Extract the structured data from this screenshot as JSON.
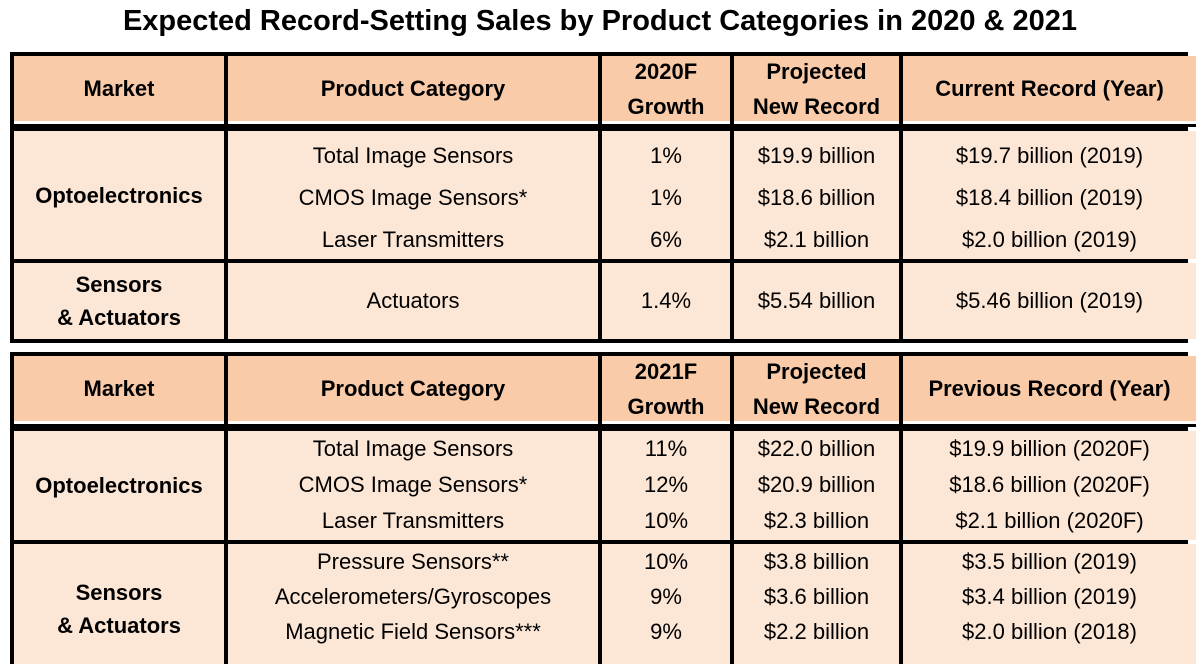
{
  "title": "Expected Record-Setting Sales by Product Categories in 2020 & 2021",
  "table_2020": {
    "headers": [
      "Market",
      "Product Category",
      "2020F Growth",
      "Projected New Record",
      "Current Record (Year)"
    ],
    "header_lines": {
      "growth": [
        "2020F",
        "Growth"
      ],
      "projected": [
        "Projected",
        "New Record"
      ]
    },
    "groups": [
      {
        "market": "Optoelectronics",
        "rows": [
          {
            "category": "Total Image Sensors",
            "growth": "1%",
            "projected": "$19.9 billion",
            "record": "$19.7 billion (2019)"
          },
          {
            "category": "CMOS Image Sensors*",
            "growth": "1%",
            "projected": "$18.6 billion",
            "record": "$18.4 billion (2019)"
          },
          {
            "category": "Laser Transmitters",
            "growth": "6%",
            "projected": "$2.1 billion",
            "record": "$2.0 billion (2019)"
          }
        ]
      },
      {
        "market_lines": [
          "Sensors",
          "& Actuators"
        ],
        "rows": [
          {
            "category": "Actuators",
            "growth": "1.4%",
            "projected": "$5.54 billion",
            "record": "$5.46 billion (2019)"
          }
        ]
      }
    ]
  },
  "table_2021": {
    "headers": [
      "Market",
      "Product Category",
      "2021F Growth",
      "Projected New Record",
      "Previous Record (Year)"
    ],
    "header_lines": {
      "growth": [
        "2021F",
        "Growth"
      ],
      "projected": [
        "Projected",
        "New Record"
      ]
    },
    "groups": [
      {
        "market": "Optoelectronics",
        "rows": [
          {
            "category": "Total Image Sensors",
            "growth": "11%",
            "projected": "$22.0 billion",
            "record": "$19.9 billion (2020F)"
          },
          {
            "category": "CMOS Image Sensors*",
            "growth": "12%",
            "projected": "$20.9 billion",
            "record": "$18.6 billion (2020F)"
          },
          {
            "category": "Laser Transmitters",
            "growth": "10%",
            "projected": "$2.3 billion",
            "record": "$2.1 billion (2020F)"
          }
        ]
      },
      {
        "market_lines": [
          "Sensors",
          "& Actuators"
        ],
        "rows": [
          {
            "category": "Pressure Sensors**",
            "growth": "10%",
            "projected": "$3.8 billion",
            "record": "$3.5 billion (2019)"
          },
          {
            "category": "Accelerometers/Gyroscopes",
            "growth": "9%",
            "projected": "$3.6 billion",
            "record": "$3.4 billion (2019)"
          },
          {
            "category": "Magnetic Field Sensors***",
            "growth": "9%",
            "projected": "$2.2 billion",
            "record": "$2.0 billion (2018)"
          }
        ]
      }
    ]
  },
  "colors": {
    "header_fill": "#f9cba8",
    "body_fill": "#fce6d6",
    "border": "#000000"
  }
}
